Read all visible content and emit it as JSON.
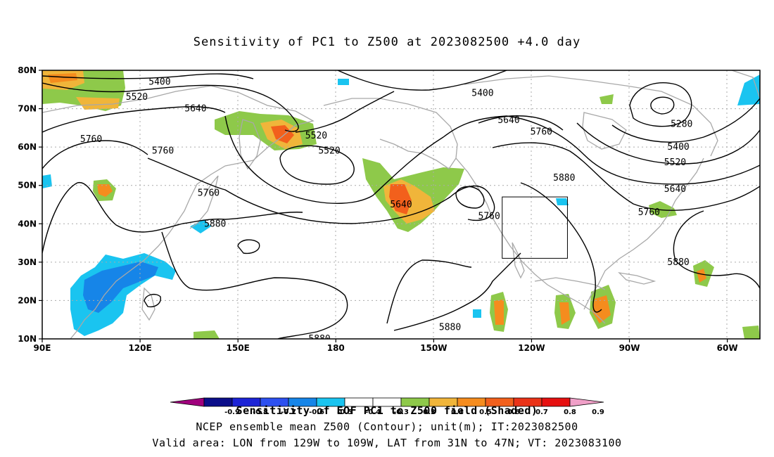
{
  "title": "Sensitivity of PC1 to Z500 at 2023082500 +4.0 day",
  "map": {
    "lon_range": [
      90,
      310
    ],
    "lat_range": [
      10,
      80
    ],
    "lat_ticks": [
      {
        "lat": 80,
        "label": "80N"
      },
      {
        "lat": 70,
        "label": "70N"
      },
      {
        "lat": 60,
        "label": "60N"
      },
      {
        "lat": 50,
        "label": "50N"
      },
      {
        "lat": 40,
        "label": "40N"
      },
      {
        "lat": 30,
        "label": "30N"
      },
      {
        "lat": 20,
        "label": "20N"
      },
      {
        "lat": 10,
        "label": "10N"
      }
    ],
    "lon_ticks": [
      {
        "lon": 90,
        "label": "90E"
      },
      {
        "lon": 120,
        "label": "120E"
      },
      {
        "lon": 150,
        "label": "150E"
      },
      {
        "lon": 180,
        "label": "180"
      },
      {
        "lon": 210,
        "label": "150W"
      },
      {
        "lon": 240,
        "label": "120W"
      },
      {
        "lon": 270,
        "label": "90W"
      },
      {
        "lon": 300,
        "label": "60W"
      }
    ],
    "contour_labels": [
      {
        "text": "5400",
        "lon": 126,
        "lat": 77
      },
      {
        "text": "5520",
        "lon": 119,
        "lat": 73
      },
      {
        "text": "5640",
        "lon": 137,
        "lat": 70
      },
      {
        "text": "5760",
        "lon": 105,
        "lat": 62
      },
      {
        "text": "5760",
        "lon": 127,
        "lat": 59
      },
      {
        "text": "5520",
        "lon": 174,
        "lat": 63
      },
      {
        "text": "5520",
        "lon": 178,
        "lat": 59
      },
      {
        "text": "5400",
        "lon": 225,
        "lat": 74
      },
      {
        "text": "5640",
        "lon": 233,
        "lat": 67
      },
      {
        "text": "5760",
        "lon": 243,
        "lat": 64
      },
      {
        "text": "5280",
        "lon": 286,
        "lat": 66
      },
      {
        "text": "5400",
        "lon": 285,
        "lat": 60
      },
      {
        "text": "5520",
        "lon": 284,
        "lat": 56
      },
      {
        "text": "5640",
        "lon": 284,
        "lat": 49
      },
      {
        "text": "5760",
        "lon": 276,
        "lat": 43
      },
      {
        "text": "5880",
        "lon": 250,
        "lat": 52
      },
      {
        "text": "5760",
        "lon": 141,
        "lat": 48
      },
      {
        "text": "5880",
        "lon": 143,
        "lat": 40
      },
      {
        "text": "5640",
        "lon": 200,
        "lat": 45
      },
      {
        "text": "5760",
        "lon": 227,
        "lat": 42
      },
      {
        "text": "5880",
        "lon": 285,
        "lat": 30
      },
      {
        "text": "5880",
        "lon": 215,
        "lat": 13
      },
      {
        "text": "5880",
        "lon": 175,
        "lat": 10
      }
    ],
    "valid_box": {
      "lon_min": 231,
      "lon_max": 251,
      "lat_min": 31,
      "lat_max": 47
    }
  },
  "colorbar": {
    "colors": [
      "#a0007d",
      "#0b0e8a",
      "#1c23d6",
      "#2c50f0",
      "#1685e8",
      "#1ac4f0",
      "#ffffff",
      "#ffffff",
      "#8ec94a",
      "#f0b53a",
      "#f58c1e",
      "#f2601c",
      "#ea3318",
      "#e61010",
      "#f0a0c8"
    ],
    "tick_labels": [
      "-0.9",
      "-0.8",
      "-0.7",
      "-0.6",
      "-0.5",
      "-0.4",
      "-0.3",
      "0.3",
      "0.4",
      "0.5",
      "0.6",
      "0.7",
      "0.8",
      "0.9"
    ]
  },
  "captions": {
    "line1": "Sensitivity of EOF PC1 to Z500 field (Shaded)",
    "line2": "NCEP ensemble mean Z500 (Contour); unit(m); IT:2023082500",
    "line3": "Valid area: LON from 129W to 109W, LAT from 31N to 47N; VT: 2023083100"
  }
}
